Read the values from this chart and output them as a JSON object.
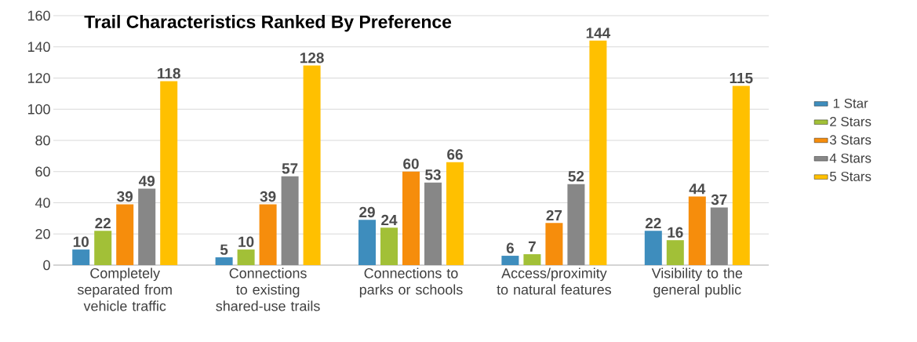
{
  "chart_data": {
    "type": "bar",
    "title": "Trail Characteristics Ranked By Preference",
    "categories": [
      "Completely separated from vehicle traffic",
      "Connections to existing shared-use trails",
      "Connections to parks or schools",
      "Access/proximity to natural features",
      "Visibility to the general public"
    ],
    "series": [
      {
        "name": "1 Star",
        "color": "#3e8dbd",
        "values": [
          10,
          5,
          29,
          6,
          22
        ]
      },
      {
        "name": "2 Stars",
        "color": "#a2c037",
        "values": [
          22,
          10,
          24,
          7,
          16
        ]
      },
      {
        "name": "3 Stars",
        "color": "#f68d0c",
        "values": [
          39,
          39,
          60,
          27,
          44
        ]
      },
      {
        "name": "4 Stars",
        "color": "#878787",
        "values": [
          49,
          57,
          53,
          52,
          37
        ]
      },
      {
        "name": "5 Stars",
        "color": "#ffc000",
        "values": [
          118,
          128,
          66,
          144,
          115
        ]
      }
    ],
    "ylim": [
      0,
      160
    ],
    "yticks": [
      0,
      20,
      40,
      60,
      80,
      100,
      120,
      140,
      160
    ],
    "grid": "y",
    "legend": "right",
    "data_labels": true
  }
}
